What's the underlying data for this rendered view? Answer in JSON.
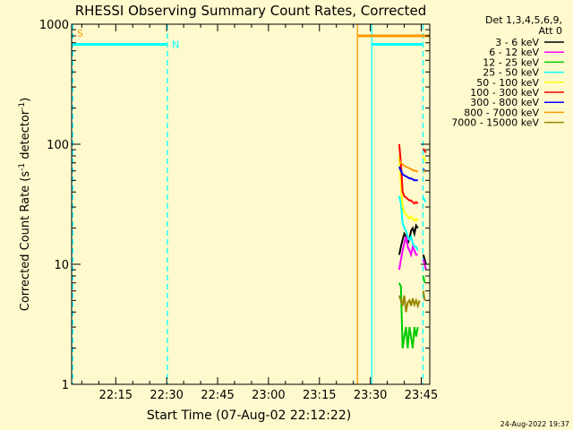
{
  "chart_data": {
    "type": "line",
    "title": "RHESSI Observing Summary Count Rates, Corrected",
    "xlabel": "Start Time (07-Aug-02 22:12:22)",
    "ylabel_parts": [
      "Corrected Count Rate (s",
      "-1",
      " detector",
      "-1",
      ")"
    ],
    "y_scale": "log",
    "ylim": [
      1,
      1000
    ],
    "xlim_minutes": [
      2,
      107.5
    ],
    "x_ticks": [
      {
        "label": "22:15",
        "minutes": 15
      },
      {
        "label": "22:30",
        "minutes": 30
      },
      {
        "label": "22:45",
        "minutes": 45
      },
      {
        "label": "23:00",
        "minutes": 60
      },
      {
        "label": "23:15",
        "minutes": 75
      },
      {
        "label": "23:30",
        "minutes": 90
      },
      {
        "label": "23:45",
        "minutes": 105
      }
    ],
    "y_ticks": [
      {
        "label": "1",
        "value": 1
      },
      {
        "label": "10",
        "value": 10
      },
      {
        "label": "100",
        "value": 100
      },
      {
        "label": "1000",
        "value": 1000
      }
    ],
    "legend": {
      "placement": "right",
      "header": [
        "Det 1,3,4,5,6,9,",
        "Att 0"
      ],
      "entries": [
        {
          "label": "3 - 6 keV",
          "color": "#000000"
        },
        {
          "label": "6 - 12 keV",
          "color": "#ff00ff"
        },
        {
          "label": "12 - 25 keV",
          "color": "#00cc00"
        },
        {
          "label": "25 - 50 keV",
          "color": "#00ffff"
        },
        {
          "label": "50 - 100 keV",
          "color": "#ffff00"
        },
        {
          "label": "100 - 300 keV",
          "color": "#ff0000"
        },
        {
          "label": "300 - 800 keV",
          "color": "#0000ff"
        },
        {
          "label": "800 - 7000 keV",
          "color": "#ff9900"
        },
        {
          "label": "7000 - 15000 keV",
          "color": "#998800"
        }
      ]
    },
    "flag_bars": [
      {
        "label": "S",
        "color": "#ff9900",
        "value": 1000,
        "start": 2,
        "end": 2
      },
      {
        "label": "N",
        "color": "#00ffff",
        "value": 680,
        "start": 2.2,
        "end": 30
      },
      {
        "label": "",
        "color": "#ff9900",
        "value": 800,
        "start": 86.2,
        "end": 107.5
      },
      {
        "label": "",
        "color": "#00ffff",
        "value": 680,
        "start": 90.5,
        "end": 105.5
      }
    ],
    "vertical_markers": [
      {
        "minutes": 2.3,
        "color": "#00ffff",
        "style": "dashed"
      },
      {
        "minutes": 30.2,
        "color": "#00ffff",
        "style": "dashed"
      },
      {
        "minutes": 86.2,
        "color": "#ff9900",
        "style": "solid"
      },
      {
        "minutes": 90.4,
        "color": "#00ffff",
        "style": "solid"
      },
      {
        "minutes": 105.5,
        "color": "#00ffff",
        "style": "dashed"
      }
    ],
    "series": [
      {
        "name": "3 - 6 keV",
        "color": "#000000",
        "segments": [
          {
            "x": [
              98.5,
              99.0,
              99.5,
              100.0,
              100.5,
              101.0,
              101.5,
              102.0,
              102.5,
              103.0,
              103.5,
              104.0
            ],
            "y": [
              12,
              14,
              16,
              18,
              17,
              15,
              16,
              19,
              20,
              18,
              21,
              20
            ]
          },
          {
            "x": [
              105.6,
              106.0,
              106.4
            ],
            "y": [
              12,
              11,
              10
            ]
          }
        ]
      },
      {
        "name": "6 - 12 keV",
        "color": "#ff00ff",
        "segments": [
          {
            "x": [
              98.5,
              99.0,
              99.5,
              100.0,
              100.5,
              101.0,
              101.5,
              102.0,
              102.5,
              103.0,
              103.5,
              104.0
            ],
            "y": [
              9,
              11,
              13,
              15,
              17,
              14,
              13,
              12,
              14,
              13,
              12,
              12
            ]
          },
          {
            "x": [
              105.6,
              106.0,
              106.4
            ],
            "y": [
              11,
              10,
              9
            ]
          }
        ]
      },
      {
        "name": "12 - 25 keV",
        "color": "#00cc00",
        "segments": [
          {
            "x": [
              98.5,
              99.0,
              99.5,
              100.0,
              100.5,
              101.0,
              101.5,
              102.0,
              102.5,
              103.0,
              103.5,
              104.0
            ],
            "y": [
              7,
              6.5,
              2,
              2.5,
              3,
              2,
              3,
              2.5,
              2,
              3,
              2.5,
              3
            ]
          },
          {
            "x": [
              105.6,
              106.0
            ],
            "y": [
              8,
              7
            ]
          }
        ]
      },
      {
        "name": "25 - 50 keV",
        "color": "#00ffff",
        "segments": [
          {
            "x": [
              98.5,
              99.0,
              99.5,
              100.0,
              100.5,
              101.0,
              101.5,
              102.0,
              102.5,
              103.0,
              103.5,
              104.0
            ],
            "y": [
              37,
              32,
              22,
              20,
              19,
              17,
              16,
              17,
              15,
              14,
              14,
              13
            ]
          },
          {
            "x": [
              105.6,
              106.0,
              106.4
            ],
            "y": [
              36,
              34,
              33
            ]
          }
        ]
      },
      {
        "name": "50 - 100 keV",
        "color": "#ffff00",
        "segments": [
          {
            "x": [
              98.5,
              99.0,
              99.5,
              100.0,
              100.5,
              101.0,
              101.5,
              102.0,
              102.5,
              103.0,
              103.5,
              104.0
            ],
            "y": [
              80,
              46,
              30,
              27,
              26,
              25,
              24,
              25,
              24,
              23,
              24,
              23
            ]
          },
          {
            "x": [
              105.6,
              106.0,
              106.4
            ],
            "y": [
              80,
              75,
              72
            ]
          }
        ]
      },
      {
        "name": "100 - 300 keV",
        "color": "#ff0000",
        "segments": [
          {
            "x": [
              98.5,
              99.0,
              99.5,
              100.0,
              100.5,
              101.0,
              101.5,
              102.0,
              102.5,
              103.0,
              103.5,
              104.0
            ],
            "y": [
              100,
              70,
              40,
              37,
              36,
              35,
              34,
              34,
              33,
              32,
              33,
              32
            ]
          },
          {
            "x": [
              105.6,
              106.0,
              106.4
            ],
            "y": [
              92,
              88,
              85
            ]
          }
        ]
      },
      {
        "name": "300 - 800 keV",
        "color": "#0000ff",
        "segments": [
          {
            "x": [
              98.5,
              99.0,
              99.5,
              100.0,
              100.5,
              101.0,
              101.5,
              102.0,
              102.5,
              103.0,
              103.5,
              104.0
            ],
            "y": [
              65,
              60,
              56,
              55,
              54,
              53,
              52,
              52,
              51,
              50,
              50,
              50
            ]
          },
          {
            "x": [
              105.6,
              106.0,
              106.4
            ],
            "y": [
              62,
              60,
              60
            ]
          }
        ]
      },
      {
        "name": "800 - 7000 keV",
        "color": "#ff9900",
        "segments": [
          {
            "x": [
              98.5,
              99.0,
              99.5,
              100.0,
              100.5,
              101.0,
              101.5,
              102.0,
              102.5,
              103.0,
              103.5,
              104.0
            ],
            "y": [
              75,
              70,
              68,
              66,
              65,
              64,
              63,
              62,
              61,
              60,
              60,
              59
            ]
          },
          {
            "x": [
              105.6,
              106.0,
              106.4
            ],
            "y": [
              60,
              60,
              59
            ]
          }
        ]
      },
      {
        "name": "7000 - 15000 keV",
        "color": "#998800",
        "segments": [
          {
            "x": [
              98.5,
              99.0,
              99.5,
              100.0,
              100.5,
              101.0,
              101.5,
              102.0,
              102.5,
              103.0,
              103.5,
              104.0,
              104.5
            ],
            "y": [
              5.5,
              5,
              4.5,
              5.5,
              4,
              4.8,
              5,
              4.5,
              5.2,
              4.6,
              5,
              4.5,
              5
            ]
          },
          {
            "x": [
              105.6,
              106.0
            ],
            "y": [
              6,
              5
            ]
          }
        ]
      }
    ]
  },
  "footer": {
    "timestamp": "24-Aug-2022 19:37"
  }
}
